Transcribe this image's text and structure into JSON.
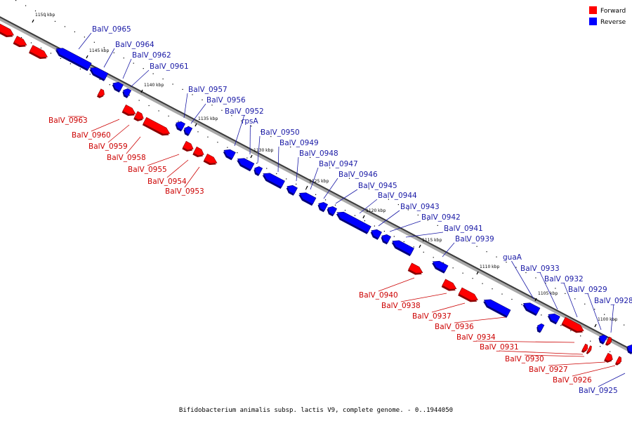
{
  "caption": "Bifidobacterium animalis subsp. lactis V9, complete genome. - 0..1944050",
  "legend": [
    {
      "label": "Forward",
      "color": "#ff0000"
    },
    {
      "label": "Reverse",
      "color": "#0000ff"
    }
  ],
  "colors": {
    "forward": "#ff0000",
    "reverse": "#0000ff",
    "forward_label": "#cc0000",
    "reverse_label": "#1a1aa6"
  },
  "ticks": [
    "1150 kbp",
    "1145 kbp",
    "1140 kbp",
    "1135 kbp",
    "1130 kbp",
    "1125 kbp",
    "1120 kbp",
    "1115 kbp",
    "1110 kbp",
    "1105 kbp",
    "1100 kbp"
  ],
  "genes": [
    {
      "name": "",
      "strand": "forward"
    },
    {
      "name": "",
      "strand": "forward"
    },
    {
      "name": "",
      "strand": "forward"
    },
    {
      "name": "BalV_0965",
      "strand": "reverse"
    },
    {
      "name": "BalV_0964",
      "strand": "reverse"
    },
    {
      "name": "BalV_0962",
      "strand": "reverse"
    },
    {
      "name": "BalV_0961",
      "strand": "reverse"
    },
    {
      "name": "BalV_0963",
      "strand": "forward"
    },
    {
      "name": "BalV_0960",
      "strand": "forward"
    },
    {
      "name": "BalV_0959",
      "strand": "forward"
    },
    {
      "name": "BalV_0958",
      "strand": "forward"
    },
    {
      "name": "BalV_0957",
      "strand": "reverse"
    },
    {
      "name": "BalV_0956",
      "strand": "reverse"
    },
    {
      "name": "BalV_0955",
      "strand": "forward"
    },
    {
      "name": "BalV_0954",
      "strand": "forward"
    },
    {
      "name": "BalV_0953",
      "strand": "forward"
    },
    {
      "name": "BalV_0952",
      "strand": "reverse"
    },
    {
      "name": "rpsA",
      "strand": "reverse"
    },
    {
      "name": "BalV_0950",
      "strand": "reverse"
    },
    {
      "name": "BalV_0949",
      "strand": "reverse"
    },
    {
      "name": "BalV_0948",
      "strand": "reverse"
    },
    {
      "name": "BalV_0947",
      "strand": "reverse"
    },
    {
      "name": "BalV_0946",
      "strand": "reverse"
    },
    {
      "name": "BalV_0945",
      "strand": "reverse"
    },
    {
      "name": "BalV_0944",
      "strand": "reverse"
    },
    {
      "name": "BalV_0943",
      "strand": "reverse"
    },
    {
      "name": "BalV_0942",
      "strand": "reverse"
    },
    {
      "name": "BalV_0941",
      "strand": "reverse"
    },
    {
      "name": "BalV_0939",
      "strand": "reverse"
    },
    {
      "name": "BalV_0940",
      "strand": "forward"
    },
    {
      "name": "BalV_0938",
      "strand": "forward"
    },
    {
      "name": "BalV_0937",
      "strand": "forward"
    },
    {
      "name": "guaA",
      "strand": "reverse"
    },
    {
      "name": "BalV_0933",
      "strand": "reverse"
    },
    {
      "name": "BalV_0932",
      "strand": "reverse"
    },
    {
      "name": "BalV_0936",
      "strand": "forward"
    },
    {
      "name": "BalV_0929",
      "strand": "reverse"
    },
    {
      "name": "BalV_0928",
      "strand": "reverse"
    },
    {
      "name": "BalV_0934",
      "strand": "forward"
    },
    {
      "name": "BalV_0931",
      "strand": "forward"
    },
    {
      "name": "BalV_0930",
      "strand": "forward"
    },
    {
      "name": "BalV_0927",
      "strand": "forward"
    },
    {
      "name": "BalV_0926",
      "strand": "forward"
    },
    {
      "name": "BalV_0925",
      "strand": "reverse"
    },
    {
      "name": "",
      "strand": "reverse"
    }
  ]
}
